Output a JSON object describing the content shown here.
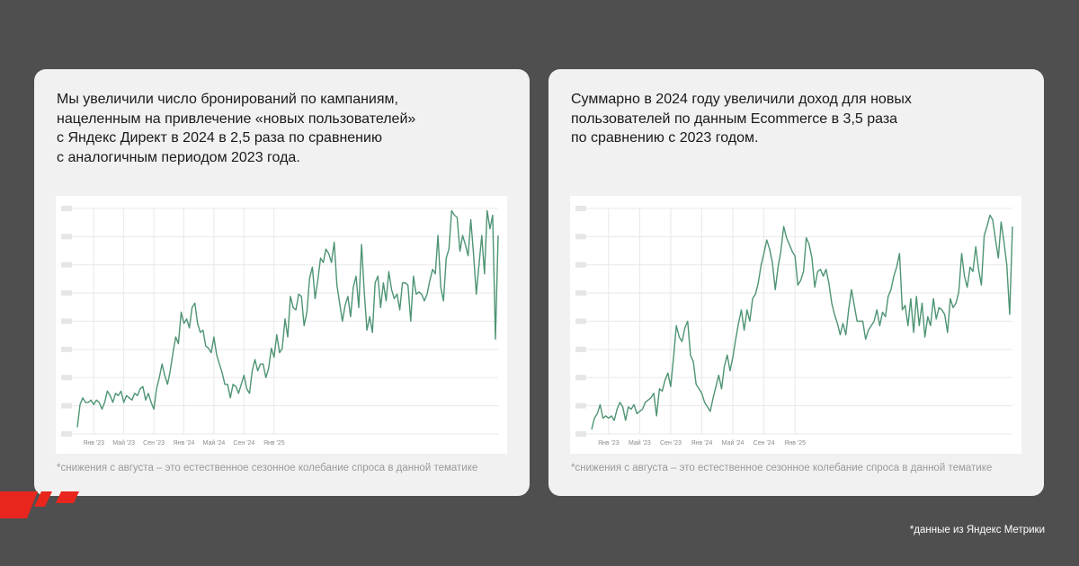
{
  "cards": [
    {
      "text_lines": [
        "Мы увеличили число бронирований по кампаниям,",
        "нацеленным на привлечение «новых пользователей»",
        "с Яндекс Директ в 2024 в 2,5 раза по сравнению",
        "с аналогичным периодом 2023 года."
      ],
      "footnote": "*снижения с августа – это естественное сезонное колебание спроса в данной тематике"
    },
    {
      "text_lines": [
        "Суммарно в 2024 году увеличили доход для новых",
        "пользователей по данным Ecommerce в 3,5 раза",
        "по сравнению с 2023 годом."
      ],
      "footnote": "*снижения с августа – это естественное сезонное колебание спроса в данной тематике"
    }
  ],
  "source_note": "*данные из Яндекс Метрики",
  "colors": {
    "line": "#4e9473",
    "grid": "#e8e8e8",
    "accent": "#e8261d"
  },
  "chart_data": [
    {
      "type": "line",
      "title": "",
      "xlabel": "",
      "ylabel": "",
      "grid": true,
      "y_tick_labels_visible": false,
      "ylim": [
        0,
        100
      ],
      "x_ticks": [
        {
          "label": "Янв '23",
          "index": 6
        },
        {
          "label": "Май '23",
          "index": 17
        },
        {
          "label": "Сен '23",
          "index": 28
        },
        {
          "label": "Янв '24",
          "index": 39
        },
        {
          "label": "Май '24",
          "index": 50
        },
        {
          "label": "Сен '24",
          "index": 61
        },
        {
          "label": "Янв '25",
          "index": 72
        }
      ],
      "series": [
        {
          "values": [
            3,
            13,
            16,
            14,
            14,
            15,
            13,
            15,
            14,
            11,
            14,
            19,
            17,
            14,
            18,
            17,
            19,
            14,
            17,
            16,
            15,
            18,
            17,
            20,
            21,
            15,
            18,
            14,
            11,
            20,
            25,
            31,
            26,
            22,
            28,
            36,
            43,
            40,
            54,
            49,
            51,
            47,
            56,
            58,
            49,
            45,
            46,
            39,
            38,
            36,
            43,
            35,
            31,
            27,
            22,
            22,
            16,
            22,
            21,
            18,
            22,
            26,
            20,
            18,
            28,
            33,
            28,
            31,
            31,
            25,
            29,
            38,
            34,
            44,
            36,
            38,
            51,
            43,
            61,
            56,
            55,
            62,
            61,
            48,
            54,
            69,
            74,
            60,
            68,
            78,
            76,
            82,
            80,
            76,
            85,
            66,
            58,
            50,
            57,
            61,
            52,
            65,
            70,
            56,
            84,
            63,
            46,
            52,
            45,
            67,
            70,
            56,
            67,
            59,
            72,
            64,
            60,
            62,
            55,
            67,
            67,
            66,
            50,
            70,
            62,
            63,
            62,
            59,
            62,
            68,
            73,
            71,
            88,
            65,
            59,
            78,
            82,
            99,
            97,
            96,
            81,
            88,
            84,
            79,
            95,
            80,
            62,
            75,
            88,
            71,
            99,
            91,
            97,
            42,
            88
          ]
        }
      ]
    },
    {
      "type": "line",
      "title": "",
      "xlabel": "",
      "ylabel": "",
      "grid": true,
      "y_tick_labels_visible": false,
      "ylim": [
        0,
        100
      ],
      "x_ticks": [
        {
          "label": "Янв '23",
          "index": 6
        },
        {
          "label": "Май '23",
          "index": 17
        },
        {
          "label": "Сен '23",
          "index": 28
        },
        {
          "label": "Янв '24",
          "index": 39
        },
        {
          "label": "Май '24",
          "index": 50
        },
        {
          "label": "Сен '24",
          "index": 61
        },
        {
          "label": "Янв '25",
          "index": 72
        }
      ],
      "series": [
        {
          "values": [
            2,
            7,
            9,
            13,
            7,
            8,
            7,
            8,
            6,
            11,
            14,
            12,
            6,
            12,
            11,
            13,
            9,
            10,
            11,
            14,
            15,
            16,
            18,
            8,
            20,
            19,
            24,
            27,
            21,
            34,
            48,
            43,
            41,
            47,
            50,
            35,
            32,
            22,
            20,
            18,
            14,
            12,
            10,
            16,
            21,
            26,
            20,
            30,
            35,
            28,
            34,
            42,
            49,
            55,
            46,
            55,
            50,
            60,
            62,
            67,
            75,
            80,
            86,
            82,
            76,
            64,
            74,
            81,
            92,
            87,
            84,
            81,
            79,
            66,
            68,
            72,
            87,
            84,
            78,
            65,
            72,
            73,
            70,
            73,
            67,
            58,
            53,
            49,
            44,
            49,
            44,
            55,
            64,
            57,
            50,
            50,
            50,
            42,
            46,
            48,
            50,
            55,
            48,
            54,
            52,
            61,
            64,
            70,
            74,
            80,
            55,
            57,
            48,
            60,
            45,
            61,
            48,
            58,
            43,
            52,
            48,
            60,
            51,
            56,
            55,
            53,
            45,
            60,
            56,
            58,
            63,
            80,
            70,
            65,
            74,
            72,
            83,
            73,
            66,
            88,
            92,
            97,
            95,
            86,
            78,
            94,
            85,
            75,
            53,
            92
          ]
        }
      ]
    }
  ]
}
